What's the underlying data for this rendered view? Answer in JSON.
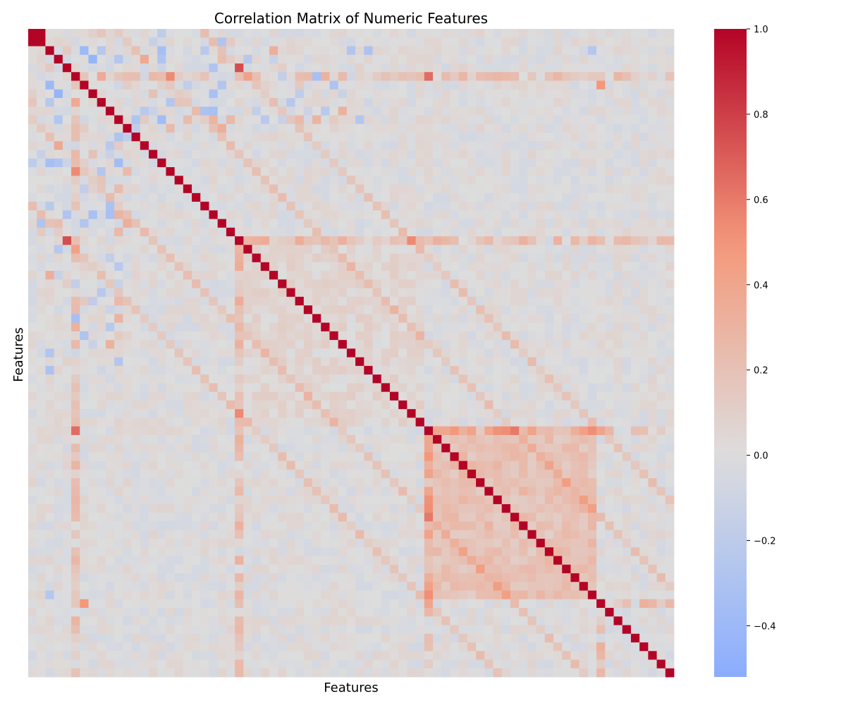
{
  "chart_data": {
    "type": "heatmap",
    "title": "Correlation Matrix of Numeric Features",
    "xlabel": "Features",
    "ylabel": "Features",
    "n_features": 75,
    "value_range": [
      -0.52,
      1.0
    ],
    "colormap": "coolwarm",
    "colorbar": {
      "ticks": [
        1.0,
        0.8,
        0.6,
        0.4,
        0.2,
        0.0,
        -0.2,
        -0.4
      ],
      "tick_labels": [
        "1.0",
        "0.8",
        "0.6",
        "0.4",
        "0.2",
        "0.0",
        "−0.2",
        "−0.4"
      ]
    },
    "x_tick_labels_shown": false,
    "y_tick_labels_shown": false,
    "diagonal": 1.0,
    "approximate_structure": {
      "background_correlation": 0.0,
      "block_1": {
        "feature_range": [
          46,
          66
        ],
        "within_block_correlation": 0.2
      },
      "block_2": {
        "feature_range": [
          24,
          46
        ],
        "within_block_correlation": 0.05
      },
      "notable_pairs": [
        {
          "features": [
            0,
            1
          ],
          "value": 1.0
        },
        {
          "features": [
            4,
            24
          ],
          "value": 0.75
        },
        {
          "features": [
            5,
            46
          ],
          "value": 0.65
        },
        {
          "features": [
            6,
            66
          ],
          "value": 0.5
        },
        {
          "features": [
            2,
            6
          ],
          "value": -0.4
        },
        {
          "features": [
            3,
            7
          ],
          "value": -0.45
        },
        {
          "features": [
            2,
            65
          ],
          "value": -0.25
        }
      ]
    }
  }
}
